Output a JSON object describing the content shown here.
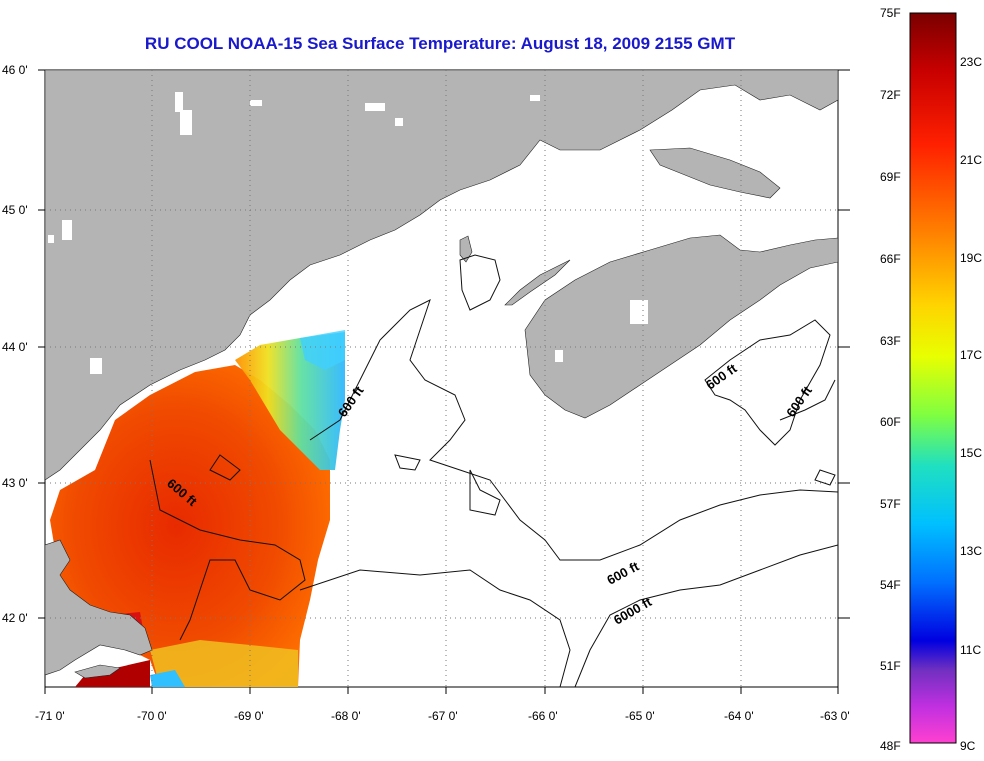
{
  "title": "RU COOL  NOAA-15  Sea Surface Temperature:  August 18, 2009 2155 GMT",
  "map": {
    "lon_labels": [
      "-71 0'",
      "-70 0'",
      "-69 0'",
      "-68 0'",
      "-67 0'",
      "-66 0'",
      "-65 0'",
      "-64 0'",
      "-63 0'"
    ],
    "lat_labels": [
      "46 0'",
      "45 0'",
      "44 0'",
      "43 0'",
      "42 0'"
    ],
    "contour_labels": [
      "600 ft",
      "600 ft",
      "600 ft",
      "600 ft",
      "600 ft",
      "6000 ft"
    ],
    "colors": {
      "land": "#b4b4b4",
      "ocean_nodata": "#ffffff",
      "grid": "#555555",
      "title": "#1a1acc"
    }
  },
  "colorbar": {
    "fahrenheit_labels": [
      "75F",
      "72F",
      "69F",
      "66F",
      "63F",
      "60F",
      "57F",
      "54F",
      "51F",
      "48F"
    ],
    "celsius_labels": [
      "23C",
      "21C",
      "19C",
      "17C",
      "15C",
      "13C",
      "11C",
      "9C"
    ],
    "range_f": [
      48,
      75
    ],
    "range_c": [
      9,
      24
    ]
  }
}
